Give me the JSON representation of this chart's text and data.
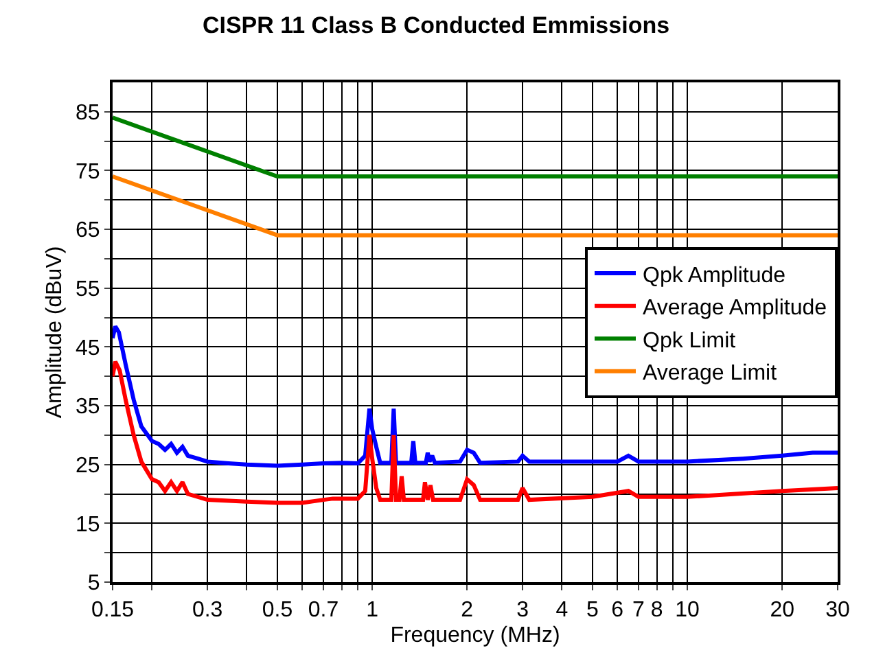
{
  "chart_data": {
    "type": "line",
    "title": "CISPR 11 Class B Conducted Emmissions",
    "xlabel": "Frequency (MHz)",
    "ylabel": "Amplitude (dBuV)",
    "log": "x",
    "grid": true,
    "legend": "top right",
    "marker": "none",
    "line_style": "solid",
    "xlim": [
      0.15,
      30
    ],
    "ylim": [
      5,
      90
    ],
    "xticks": [
      0.15,
      {
        "value": 0.2,
        "label": null
      },
      0.3,
      {
        "value": 0.4,
        "label": null
      },
      0.5,
      {
        "value": 0.6,
        "label": null
      },
      0.7,
      {
        "value": 0.8,
        "label": null
      },
      {
        "value": 0.9,
        "label": null
      },
      1,
      2,
      3,
      4,
      5,
      6,
      7,
      8,
      {
        "value": 9,
        "label": null
      },
      10,
      20,
      30
    ],
    "yticks": [
      5,
      {
        "value": 10,
        "label": null
      },
      15,
      {
        "value": 20,
        "label": null
      },
      25,
      {
        "value": 30,
        "label": null
      },
      35,
      {
        "value": 40,
        "label": null
      },
      45,
      {
        "value": 50,
        "label": null
      },
      55,
      {
        "value": 60,
        "label": null
      },
      65,
      {
        "value": 70,
        "label": null
      },
      75,
      {
        "value": 80,
        "label": null
      },
      85
    ],
    "series": [
      {
        "name": "Qpk Amplitude",
        "color": "#0000ff",
        "x": [
          0.15,
          0.153,
          0.157,
          0.165,
          0.175,
          0.185,
          0.2,
          0.21,
          0.22,
          0.23,
          0.24,
          0.25,
          0.26,
          0.28,
          0.3,
          0.35,
          0.4,
          0.5,
          0.6,
          0.7,
          0.8,
          0.9,
          0.95,
          0.98,
          1.0,
          1.03,
          1.06,
          1.15,
          1.17,
          1.19,
          1.33,
          1.35,
          1.37,
          1.48,
          1.5,
          1.52,
          1.55,
          1.58,
          1.9,
          2.0,
          2.1,
          2.2,
          2.9,
          3.0,
          3.15,
          4,
          5,
          6,
          6.5,
          7,
          10,
          15,
          20,
          25,
          30
        ],
        "values": [
          46.5,
          48.5,
          47.5,
          42,
          36,
          31.5,
          29,
          28.5,
          27.5,
          28.5,
          27,
          28,
          26.5,
          26,
          25.5,
          25.2,
          25,
          24.8,
          25,
          25.2,
          25.3,
          25.2,
          26.5,
          34.5,
          31,
          28,
          25.3,
          25.3,
          34.5,
          25.3,
          25.3,
          29,
          25.3,
          25.3,
          27,
          25.5,
          26.5,
          25.3,
          25.5,
          27.5,
          27,
          25.3,
          25.5,
          26.5,
          25.5,
          25.5,
          25.5,
          25.5,
          26.5,
          25.5,
          25.5,
          26,
          26.5,
          27,
          27
        ]
      },
      {
        "name": "Average Amplitude",
        "color": "#ff0000",
        "x": [
          0.15,
          0.153,
          0.158,
          0.165,
          0.175,
          0.185,
          0.2,
          0.21,
          0.22,
          0.23,
          0.24,
          0.25,
          0.26,
          0.28,
          0.3,
          0.4,
          0.5,
          0.6,
          0.7,
          0.75,
          0.9,
          0.95,
          0.98,
          1.0,
          1.03,
          1.06,
          1.15,
          1.17,
          1.19,
          1.22,
          1.24,
          1.26,
          1.45,
          1.47,
          1.5,
          1.53,
          1.56,
          1.9,
          2.0,
          2.1,
          2.2,
          2.9,
          3.0,
          3.15,
          5,
          6.5,
          7,
          10,
          20,
          30
        ],
        "values": [
          40,
          42.5,
          41,
          36,
          30,
          25.5,
          22.5,
          22,
          20.5,
          22,
          20.5,
          22,
          20,
          19.5,
          19,
          18.7,
          18.5,
          18.5,
          19,
          19.2,
          19.2,
          20.5,
          30,
          26,
          21,
          19,
          19,
          30,
          19,
          19,
          23,
          19,
          19,
          22,
          19,
          21.5,
          19,
          19,
          22.5,
          21.5,
          19,
          19,
          21,
          19,
          19.5,
          20.5,
          19.5,
          19.5,
          20.5,
          21
        ]
      },
      {
        "name": "Qpk Limit",
        "color": "#008000",
        "x": [
          0.15,
          0.5,
          30
        ],
        "values": [
          84,
          74,
          74
        ]
      },
      {
        "name": "Average Limit",
        "color": "#ff7f00",
        "x": [
          0.15,
          0.5,
          30
        ],
        "values": [
          74,
          64,
          64
        ]
      }
    ]
  }
}
